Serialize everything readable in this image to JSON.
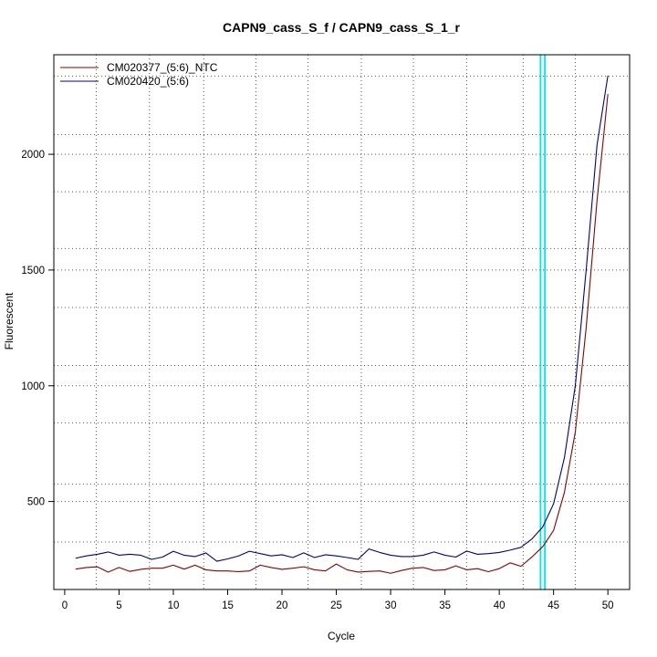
{
  "chart_data": {
    "type": "line",
    "title": "CAPN9_cass_S_f / CAPN9_cass_S_1_r",
    "xlabel": "Cycle",
    "ylabel": "Fluorescent",
    "xlim": [
      -1,
      52
    ],
    "ylim": [
      120,
      2430
    ],
    "x_ticks": [
      0,
      5,
      10,
      15,
      20,
      25,
      30,
      35,
      40,
      45,
      50
    ],
    "y_ticks": [
      500,
      1000,
      1500,
      2000
    ],
    "x_grid": [
      2.9,
      7.8,
      12.8,
      17.6,
      22.4,
      27.3,
      32.1,
      37.0,
      42.2,
      47.0
    ],
    "y_grid": [
      325,
      575,
      840,
      1088,
      1338,
      1593,
      1838,
      2085,
      2338
    ],
    "grid": true,
    "legend_position": "top-left",
    "threshold_lines": [
      {
        "x": 43.8,
        "color": "#00e5ee"
      },
      {
        "x": 44.2,
        "color": "#00e5ee"
      }
    ],
    "series": [
      {
        "name": "CM020377_(5:6)_NTC",
        "color": "#8b0000",
        "x": [
          1,
          2,
          3,
          4,
          5,
          6,
          7,
          8,
          9,
          10,
          11,
          12,
          13,
          14,
          15,
          16,
          17,
          18,
          19,
          20,
          21,
          22,
          23,
          24,
          25,
          26,
          27,
          28,
          29,
          30,
          31,
          32,
          33,
          34,
          35,
          36,
          37,
          38,
          39,
          40,
          41,
          42,
          43,
          44,
          45,
          46,
          47,
          48,
          49,
          50
        ],
        "values": [
          208,
          215,
          218,
          195,
          215,
          198,
          207,
          212,
          212,
          225,
          208,
          225,
          205,
          200,
          200,
          197,
          200,
          225,
          215,
          207,
          212,
          218,
          205,
          200,
          230,
          205,
          195,
          198,
          200,
          190,
          202,
          212,
          215,
          202,
          205,
          222,
          205,
          210,
          197,
          210,
          235,
          220,
          260,
          305,
          375,
          540,
          800,
          1250,
          1800,
          2260
        ]
      },
      {
        "name": "CM020420_(5:6)",
        "color": "#00008b",
        "x": [
          1,
          2,
          3,
          4,
          5,
          6,
          7,
          8,
          9,
          10,
          11,
          12,
          13,
          14,
          15,
          16,
          17,
          18,
          19,
          20,
          21,
          22,
          23,
          24,
          25,
          26,
          27,
          28,
          29,
          30,
          31,
          32,
          33,
          34,
          35,
          36,
          37,
          38,
          39,
          40,
          41,
          42,
          43,
          44,
          45,
          46,
          47,
          48,
          49,
          50
        ],
        "values": [
          255,
          265,
          272,
          282,
          268,
          272,
          268,
          250,
          260,
          285,
          268,
          262,
          278,
          242,
          252,
          265,
          285,
          275,
          265,
          270,
          258,
          278,
          258,
          270,
          265,
          258,
          250,
          295,
          280,
          268,
          262,
          262,
          268,
          282,
          268,
          260,
          286,
          272,
          275,
          280,
          290,
          302,
          338,
          390,
          490,
          690,
          1000,
          1500,
          2040,
          2340
        ]
      }
    ]
  }
}
